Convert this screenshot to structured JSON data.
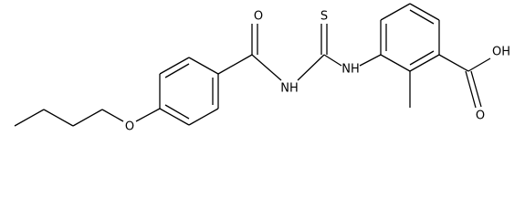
{
  "atoms": [
    {
      "label": "O"
    },
    {
      "label": "S"
    },
    {
      "label": "NH"
    },
    {
      "label": "NH"
    },
    {
      "label": "OH"
    },
    {
      "label": "O"
    },
    {
      "label": "O"
    }
  ]
}
